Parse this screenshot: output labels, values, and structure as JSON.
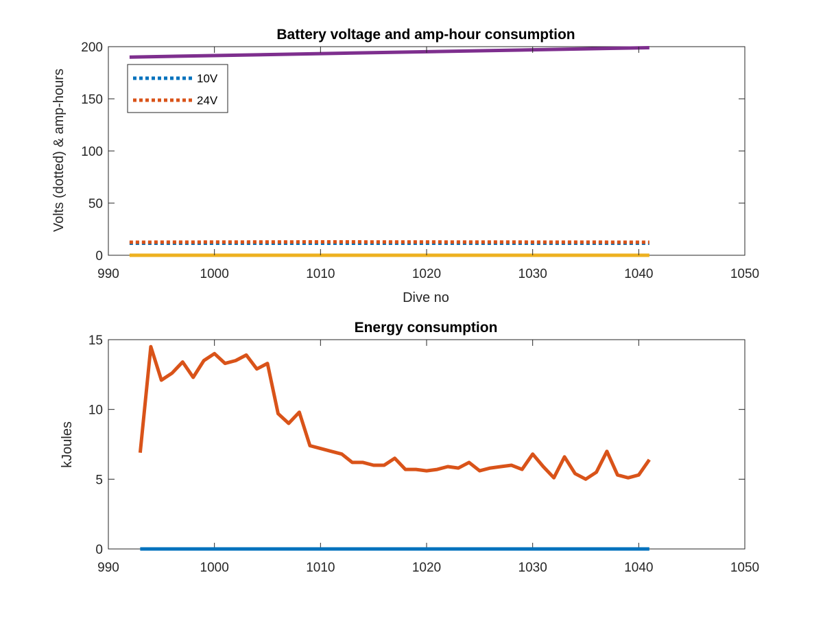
{
  "chart_data": [
    {
      "type": "line",
      "title": "Battery voltage and amp-hour consumption",
      "xlabel": "Dive no",
      "ylabel": "Volts (dotted) & amp-hours",
      "xlim": [
        990,
        1050
      ],
      "ylim": [
        0,
        200
      ],
      "xticks": [
        990,
        1000,
        1010,
        1020,
        1030,
        1040,
        1050
      ],
      "yticks": [
        0,
        50,
        100,
        150,
        200
      ],
      "grid": false,
      "legend_position": "top-left",
      "series": [
        {
          "name": "10V",
          "style": "dotted",
          "color": "#0072BD",
          "x": [
            992,
            1041
          ],
          "y": [
            11.5,
            11.5
          ]
        },
        {
          "name": "24V",
          "style": "dotted",
          "color": "#D95319",
          "x": [
            992,
            1010,
            1041
          ],
          "y": [
            12.5,
            12.8,
            12.5
          ]
        },
        {
          "style": "solid",
          "color": "#EDB120",
          "x": [
            992,
            1041
          ],
          "y": [
            0,
            0
          ]
        },
        {
          "style": "solid",
          "color": "#7E2F8E",
          "x": [
            992,
            1041
          ],
          "y": [
            190,
            199
          ]
        }
      ]
    },
    {
      "type": "line",
      "title": "Energy consumption",
      "xlabel": "",
      "ylabel": "kJoules",
      "xlim": [
        990,
        1050
      ],
      "ylim": [
        0,
        15
      ],
      "xticks": [
        990,
        1000,
        1010,
        1020,
        1030,
        1040,
        1050
      ],
      "yticks": [
        0,
        5,
        10,
        15
      ],
      "grid": false,
      "series": [
        {
          "style": "solid",
          "color": "#0072BD",
          "x": [
            993,
            1041
          ],
          "y": [
            0,
            0
          ]
        },
        {
          "style": "solid",
          "color": "#D95319",
          "x": [
            993,
            994,
            995,
            996,
            997,
            998,
            999,
            1000,
            1001,
            1002,
            1003,
            1004,
            1005,
            1006,
            1007,
            1008,
            1009,
            1010,
            1011,
            1012,
            1013,
            1014,
            1015,
            1016,
            1017,
            1018,
            1019,
            1020,
            1021,
            1022,
            1023,
            1024,
            1025,
            1026,
            1027,
            1028,
            1029,
            1030,
            1031,
            1032,
            1033,
            1034,
            1035,
            1036,
            1037,
            1038,
            1039,
            1040,
            1041
          ],
          "y": [
            6.9,
            14.5,
            12.1,
            12.6,
            13.4,
            12.3,
            13.5,
            14.0,
            13.3,
            13.5,
            13.9,
            12.9,
            13.3,
            9.7,
            9.0,
            9.8,
            7.4,
            7.2,
            7.0,
            6.8,
            6.2,
            6.2,
            6.0,
            6.0,
            6.5,
            5.7,
            5.7,
            5.6,
            5.7,
            5.9,
            5.8,
            6.2,
            5.6,
            5.8,
            5.9,
            6.0,
            5.7,
            6.8,
            5.9,
            5.1,
            6.6,
            5.4,
            5.0,
            5.5,
            7.0,
            5.3,
            5.1,
            5.3,
            6.4
          ]
        }
      ]
    }
  ]
}
